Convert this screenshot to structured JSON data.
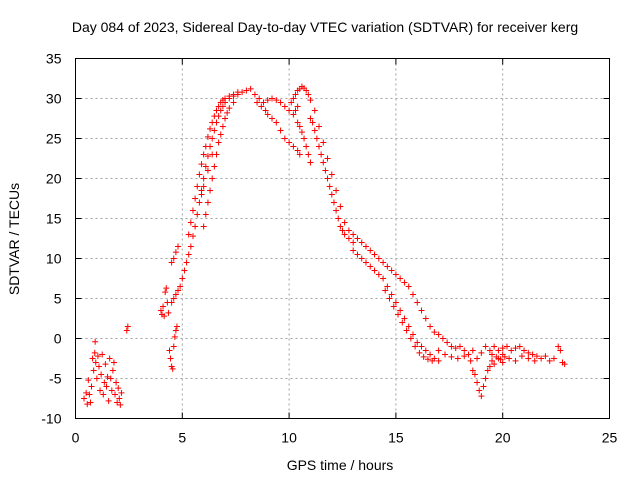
{
  "chart_data": {
    "type": "scatter",
    "title": "Day 084 of 2023, Sidereal Day-to-day VTEC variation (SDTVAR) for receiver kerg",
    "xlabel": "GPS time / hours",
    "ylabel": "SDTVAR / TECUs",
    "xlim": [
      0,
      25
    ],
    "ylim": [
      -10,
      35
    ],
    "xticks": [
      0,
      5,
      10,
      15,
      20,
      25
    ],
    "yticks": [
      -10,
      -5,
      0,
      5,
      10,
      15,
      20,
      25,
      30,
      35
    ],
    "grid": true,
    "marker": "+",
    "series": [
      {
        "name": "SDTVAR",
        "color": "#ff0000",
        "points": [
          [
            0.4,
            -7.5
          ],
          [
            0.5,
            -6.8
          ],
          [
            0.55,
            -8.2
          ],
          [
            0.6,
            -5.2
          ],
          [
            0.65,
            -7.0
          ],
          [
            0.7,
            -8.0
          ],
          [
            0.75,
            -6.0
          ],
          [
            0.8,
            -2.5
          ],
          [
            0.85,
            -4.0
          ],
          [
            0.9,
            -1.8
          ],
          [
            0.92,
            -0.4
          ],
          [
            0.95,
            -3.0
          ],
          [
            1.0,
            -5.0
          ],
          [
            1.05,
            -2.2
          ],
          [
            1.1,
            -3.5
          ],
          [
            1.15,
            -6.5
          ],
          [
            1.2,
            -4.5
          ],
          [
            1.25,
            -2.0
          ],
          [
            1.3,
            -7.0
          ],
          [
            1.35,
            -5.5
          ],
          [
            1.4,
            -3.2
          ],
          [
            1.45,
            -6.0
          ],
          [
            1.5,
            -4.8
          ],
          [
            1.55,
            -7.8
          ],
          [
            1.6,
            -2.5
          ],
          [
            1.65,
            -5.0
          ],
          [
            1.7,
            -6.5
          ],
          [
            1.75,
            -4.0
          ],
          [
            1.8,
            -3.0
          ],
          [
            1.85,
            -7.0
          ],
          [
            1.9,
            -5.5
          ],
          [
            1.95,
            -8.0
          ],
          [
            2.0,
            -6.2
          ],
          [
            2.05,
            -7.5
          ],
          [
            2.1,
            -8.3
          ],
          [
            2.15,
            -6.8
          ],
          [
            2.4,
            1.0
          ],
          [
            2.45,
            1.5
          ],
          [
            4.0,
            3.5
          ],
          [
            4.05,
            3.0
          ],
          [
            4.1,
            4.0
          ],
          [
            4.15,
            2.8
          ],
          [
            4.2,
            5.8
          ],
          [
            4.25,
            6.3
          ],
          [
            4.3,
            4.5
          ],
          [
            4.35,
            3.2
          ],
          [
            4.4,
            -1.5
          ],
          [
            4.45,
            -2.5
          ],
          [
            4.5,
            -3.5
          ],
          [
            4.55,
            -3.8
          ],
          [
            4.6,
            -1.0
          ],
          [
            4.65,
            0.2
          ],
          [
            4.7,
            1.0
          ],
          [
            4.75,
            1.5
          ],
          [
            4.5,
            9.5
          ],
          [
            4.6,
            10.0
          ],
          [
            4.7,
            10.8
          ],
          [
            4.8,
            11.5
          ],
          [
            4.5,
            4.5
          ],
          [
            4.6,
            5.0
          ],
          [
            4.7,
            5.5
          ],
          [
            4.8,
            6.0
          ],
          [
            4.9,
            6.5
          ],
          [
            5.0,
            7.5
          ],
          [
            5.1,
            8.5
          ],
          [
            5.2,
            9.5
          ],
          [
            5.3,
            10.5
          ],
          [
            5.4,
            11.5
          ],
          [
            5.5,
            12.8
          ],
          [
            5.6,
            14.0
          ],
          [
            5.7,
            15.5
          ],
          [
            5.8,
            17.0
          ],
          [
            5.9,
            18.5
          ],
          [
            6.0,
            20.0
          ],
          [
            6.1,
            21.5
          ],
          [
            6.2,
            22.8
          ],
          [
            6.3,
            24.0
          ],
          [
            6.4,
            25.0
          ],
          [
            6.5,
            26.0
          ],
          [
            6.6,
            27.0
          ],
          [
            6.7,
            27.8
          ],
          [
            6.8,
            28.5
          ],
          [
            6.9,
            29.0
          ],
          [
            7.0,
            29.5
          ],
          [
            7.2,
            30.0
          ],
          [
            7.4,
            30.3
          ],
          [
            7.6,
            30.5
          ],
          [
            7.8,
            30.8
          ],
          [
            8.0,
            31.0
          ],
          [
            8.2,
            31.2
          ],
          [
            5.3,
            13.0
          ],
          [
            5.4,
            14.5
          ],
          [
            5.5,
            16.0
          ],
          [
            5.6,
            17.5
          ],
          [
            5.7,
            19.0
          ],
          [
            5.8,
            20.5
          ],
          [
            5.9,
            21.8
          ],
          [
            6.0,
            23.0
          ],
          [
            6.1,
            24.0
          ],
          [
            6.2,
            25.2
          ],
          [
            6.3,
            26.2
          ],
          [
            6.4,
            27.0
          ],
          [
            6.5,
            27.8
          ],
          [
            6.6,
            28.5
          ],
          [
            6.7,
            29.0
          ],
          [
            6.8,
            29.5
          ],
          [
            6.9,
            29.8
          ],
          [
            7.0,
            30.0
          ],
          [
            7.2,
            30.3
          ],
          [
            7.4,
            30.5
          ],
          [
            7.6,
            30.8
          ],
          [
            6.0,
            14.0
          ],
          [
            6.1,
            15.5
          ],
          [
            6.2,
            17.0
          ],
          [
            6.3,
            18.5
          ],
          [
            6.4,
            20.0
          ],
          [
            6.5,
            21.5
          ],
          [
            6.6,
            23.0
          ],
          [
            6.7,
            24.5
          ],
          [
            6.8,
            25.5
          ],
          [
            6.9,
            26.5
          ],
          [
            7.0,
            27.5
          ],
          [
            7.1,
            28.2
          ],
          [
            7.2,
            28.8
          ],
          [
            7.4,
            29.5
          ],
          [
            5.9,
            18.0
          ],
          [
            6.0,
            19.0
          ],
          [
            6.2,
            21.0
          ],
          [
            6.4,
            23.0
          ],
          [
            8.4,
            30.5
          ],
          [
            8.6,
            30.0
          ],
          [
            8.8,
            29.5
          ],
          [
            9.0,
            29.8
          ],
          [
            9.2,
            30.0
          ],
          [
            9.4,
            29.8
          ],
          [
            9.6,
            29.5
          ],
          [
            9.8,
            29.0
          ],
          [
            10.0,
            28.5
          ],
          [
            9.0,
            28.0
          ],
          [
            9.2,
            27.5
          ],
          [
            9.4,
            27.0
          ],
          [
            9.6,
            26.0
          ],
          [
            9.8,
            25.0
          ],
          [
            10.0,
            24.5
          ],
          [
            10.2,
            24.0
          ],
          [
            10.4,
            23.5
          ],
          [
            10.5,
            23.0
          ],
          [
            8.5,
            29.5
          ],
          [
            8.7,
            29.0
          ],
          [
            8.9,
            28.5
          ],
          [
            10.1,
            29.5
          ],
          [
            10.2,
            30.0
          ],
          [
            10.3,
            30.5
          ],
          [
            10.4,
            31.0
          ],
          [
            10.5,
            31.2
          ],
          [
            10.6,
            31.5
          ],
          [
            10.7,
            31.3
          ],
          [
            10.8,
            31.0
          ],
          [
            10.9,
            30.5
          ],
          [
            11.0,
            29.8
          ],
          [
            10.2,
            28.0
          ],
          [
            10.3,
            28.5
          ],
          [
            10.4,
            29.0
          ],
          [
            10.4,
            27.0
          ],
          [
            10.5,
            26.5
          ],
          [
            10.6,
            25.8
          ],
          [
            10.7,
            25.0
          ],
          [
            10.8,
            24.0
          ],
          [
            10.9,
            23.0
          ],
          [
            11.0,
            22.0
          ],
          [
            11.0,
            27.5
          ],
          [
            11.1,
            27.0
          ],
          [
            11.2,
            26.0
          ],
          [
            11.3,
            25.0
          ],
          [
            11.4,
            24.0
          ],
          [
            11.5,
            23.0
          ],
          [
            11.6,
            22.0
          ],
          [
            11.7,
            21.0
          ],
          [
            11.8,
            20.0
          ],
          [
            11.9,
            19.0
          ],
          [
            12.0,
            18.0
          ],
          [
            12.1,
            17.0
          ],
          [
            12.2,
            16.0
          ],
          [
            12.3,
            15.0
          ],
          [
            12.4,
            14.0
          ],
          [
            12.5,
            13.5
          ],
          [
            12.6,
            13.0
          ],
          [
            12.8,
            12.5
          ],
          [
            13.0,
            12.0
          ],
          [
            11.2,
            28.5
          ],
          [
            11.4,
            26.5
          ],
          [
            11.6,
            24.5
          ],
          [
            11.8,
            22.5
          ],
          [
            12.0,
            20.5
          ],
          [
            12.2,
            18.5
          ],
          [
            12.4,
            16.5
          ],
          [
            12.6,
            14.5
          ],
          [
            12.8,
            13.5
          ],
          [
            13.0,
            13.0
          ],
          [
            13.2,
            12.5
          ],
          [
            13.4,
            12.0
          ],
          [
            13.6,
            11.5
          ],
          [
            13.8,
            11.0
          ],
          [
            14.0,
            10.5
          ],
          [
            14.2,
            10.0
          ],
          [
            14.4,
            9.5
          ],
          [
            14.6,
            9.0
          ],
          [
            14.8,
            8.5
          ],
          [
            15.0,
            8.0
          ],
          [
            15.2,
            7.5
          ],
          [
            15.4,
            7.0
          ],
          [
            15.6,
            6.5
          ],
          [
            15.8,
            5.5
          ],
          [
            16.0,
            4.5
          ],
          [
            16.2,
            3.5
          ],
          [
            16.4,
            2.5
          ],
          [
            16.6,
            1.5
          ],
          [
            16.8,
            0.8
          ],
          [
            17.0,
            0.5
          ],
          [
            17.2,
            0.0
          ],
          [
            17.4,
            -0.5
          ],
          [
            17.6,
            -1.0
          ],
          [
            17.8,
            -1.2
          ],
          [
            13.0,
            11.0
          ],
          [
            13.2,
            10.5
          ],
          [
            13.4,
            10.0
          ],
          [
            13.6,
            9.5
          ],
          [
            13.8,
            9.0
          ],
          [
            14.0,
            8.5
          ],
          [
            14.2,
            8.0
          ],
          [
            14.4,
            7.5
          ],
          [
            14.6,
            6.5
          ],
          [
            14.8,
            5.5
          ],
          [
            15.0,
            4.5
          ],
          [
            15.2,
            3.5
          ],
          [
            15.4,
            2.5
          ],
          [
            15.6,
            1.5
          ],
          [
            15.8,
            0.5
          ],
          [
            16.0,
            -0.5
          ],
          [
            16.2,
            -1.0
          ],
          [
            16.4,
            -1.5
          ],
          [
            16.6,
            -2.0
          ],
          [
            16.8,
            -2.5
          ],
          [
            14.5,
            6.0
          ],
          [
            14.7,
            5.0
          ],
          [
            14.9,
            4.0
          ],
          [
            15.1,
            3.0
          ],
          [
            15.3,
            2.0
          ],
          [
            15.5,
            1.0
          ],
          [
            15.7,
            0.0
          ],
          [
            15.9,
            -1.0
          ],
          [
            16.1,
            -1.8
          ],
          [
            16.3,
            -2.3
          ],
          [
            16.5,
            -2.6
          ],
          [
            16.7,
            -2.8
          ],
          [
            17.0,
            -2.8
          ],
          [
            17.0,
            -1.5
          ],
          [
            17.3,
            -2.0
          ],
          [
            17.6,
            -2.3
          ],
          [
            17.9,
            -2.5
          ],
          [
            18.2,
            -2.2
          ],
          [
            18.5,
            -2.8
          ],
          [
            18.0,
            -1.0
          ],
          [
            18.2,
            -1.5
          ],
          [
            18.4,
            -2.0
          ],
          [
            18.6,
            -1.5
          ],
          [
            18.8,
            -2.5
          ],
          [
            19.0,
            -1.8
          ],
          [
            18.6,
            -4.0
          ],
          [
            18.7,
            -4.5
          ],
          [
            18.8,
            -5.5
          ],
          [
            18.9,
            -6.5
          ],
          [
            19.0,
            -7.2
          ],
          [
            19.1,
            -6.0
          ],
          [
            19.2,
            -5.0
          ],
          [
            19.3,
            -4.0
          ],
          [
            19.4,
            -3.5
          ],
          [
            19.5,
            -2.8
          ],
          [
            19.6,
            -3.2
          ],
          [
            19.8,
            -2.5
          ],
          [
            20.0,
            -2.0
          ],
          [
            19.2,
            -1.0
          ],
          [
            19.4,
            -1.5
          ],
          [
            19.6,
            -1.0
          ],
          [
            19.8,
            -1.5
          ],
          [
            20.0,
            -1.2
          ],
          [
            20.2,
            -1.0
          ],
          [
            20.4,
            -1.5
          ],
          [
            20.6,
            -1.2
          ],
          [
            20.8,
            -1.0
          ],
          [
            21.0,
            -1.5
          ],
          [
            21.2,
            -1.8
          ],
          [
            21.4,
            -2.0
          ],
          [
            21.6,
            -2.2
          ],
          [
            20.0,
            -3.0
          ],
          [
            20.3,
            -2.5
          ],
          [
            20.6,
            -2.8
          ],
          [
            20.9,
            -2.2
          ],
          [
            21.2,
            -2.5
          ],
          [
            21.5,
            -2.8
          ],
          [
            21.8,
            -2.5
          ],
          [
            22.0,
            -2.2
          ],
          [
            22.2,
            -2.8
          ],
          [
            22.4,
            -2.5
          ],
          [
            22.6,
            -1.0
          ],
          [
            22.7,
            -1.5
          ],
          [
            22.8,
            -3.0
          ],
          [
            22.9,
            -3.2
          ],
          [
            19.5,
            -2.0
          ],
          [
            19.7,
            -2.3
          ],
          [
            19.9,
            -2.6
          ],
          [
            20.1,
            -2.3
          ]
        ]
      }
    ]
  }
}
